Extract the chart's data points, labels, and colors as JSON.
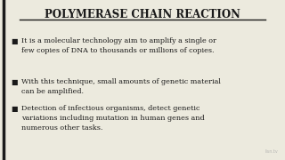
{
  "title": "POLYMERASE CHAIN REACTION",
  "background_color": "#eceade",
  "left_border_color": "#1a1a1a",
  "title_color": "#1a1a1a",
  "text_color": "#1a1a1a",
  "bullet_points": [
    "It is a molecular technology aim to amplify a single or\nfew copies of DNA to thousands or millions of copies.",
    "With this technique, small amounts of genetic material\ncan be amplified.",
    "Detection of infectious organisms, detect genetic\nvariations including mutation in human genes and\nnumerous other tasks."
  ],
  "title_fontsize": 8.5,
  "body_fontsize": 5.8,
  "bullet_char": "■",
  "watermark": "lisn.tv",
  "watermark_color": "#aaaaaa"
}
